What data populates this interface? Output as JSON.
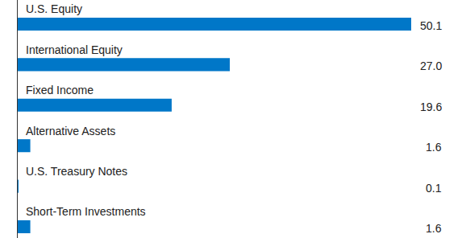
{
  "chart_data": {
    "type": "bar",
    "orientation": "horizontal",
    "categories": [
      "U.S. Equity",
      "International Equity",
      "Fixed Income",
      "Alternative Assets",
      "U.S. Treasury Notes",
      "Short-Term Investments"
    ],
    "values": [
      50.1,
      27.0,
      19.6,
      1.6,
      0.1,
      1.6
    ],
    "value_labels": [
      "50.1",
      "27.0",
      "19.6",
      "1.6",
      "0.1",
      "1.6"
    ],
    "color": "#0077c8",
    "xlim": [
      0,
      50.1
    ],
    "xticks": [],
    "grid": false,
    "data_labels": true,
    "tick_labels": "y"
  }
}
